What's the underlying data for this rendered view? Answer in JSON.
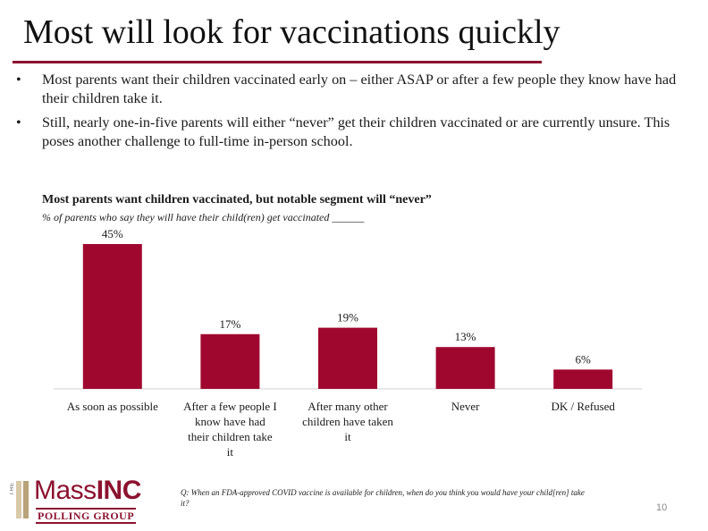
{
  "slide": {
    "title": "Most will look for vaccinations quickly",
    "bullets": [
      "Most parents want their children vaccinated early on – either ASAP or after a few people they know have had their children take it.",
      "Still, nearly one-in-five parents will either “never” get their children vaccinated or are currently unsure. This poses another challenge to full-time in-person school."
    ],
    "bullet_glyph": "•",
    "footnote": "Q: When an FDA-approved COVID vaccine is available for children, when do you think you would have your child[ren] take it?",
    "page_number": "10",
    "accent_color": "#8c1230"
  },
  "logo": {
    "the": "THE",
    "name_light": "Mass",
    "name_bold": "INC",
    "sub": "POLLING GROUP"
  },
  "chart_data": {
    "type": "bar",
    "title": "Most parents want children vaccinated, but notable segment will “never”",
    "subtitle": "% of parents who say they will have their child(ren) get vaccinated ______",
    "categories": [
      "As soon as possible",
      "After a few people I know have had their children take it",
      "After many other children have taken it",
      "Never",
      "DK / Refused"
    ],
    "category_lines": [
      [
        "As soon as possible"
      ],
      [
        "After a few people I",
        "know have had",
        "their children take",
        "it"
      ],
      [
        "After many other",
        "children have taken",
        "it"
      ],
      [
        "Never"
      ],
      [
        "DK / Refused"
      ]
    ],
    "values": [
      45,
      17,
      19,
      13,
      6
    ],
    "data_labels": [
      "45%",
      "17%",
      "19%",
      "13%",
      "6%"
    ],
    "ylim": [
      0,
      50
    ],
    "xlabel": "",
    "ylabel": "",
    "grid": false,
    "legend": "none",
    "bar_color": "#a0072f"
  }
}
